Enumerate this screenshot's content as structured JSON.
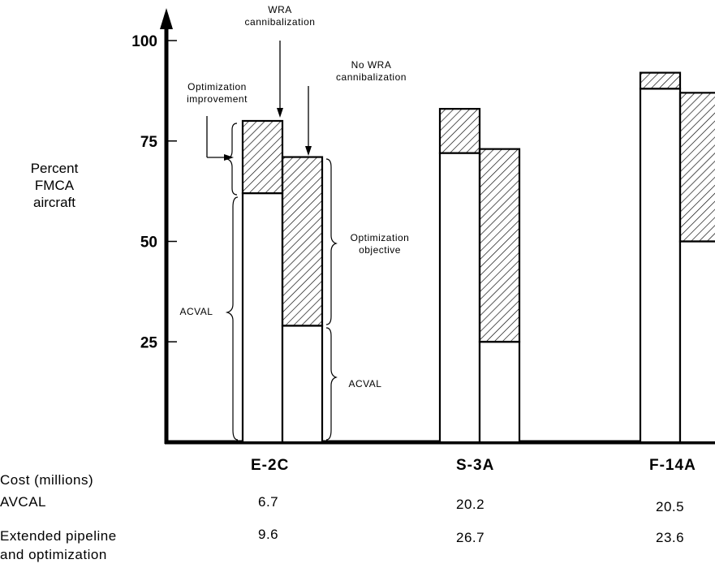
{
  "chart_data": {
    "type": "bar",
    "title": "",
    "ylabel_lines": [
      "Percent",
      "FMCA",
      "aircraft"
    ],
    "yticks": [
      25,
      50,
      75,
      100
    ],
    "ylim": [
      0,
      100
    ],
    "grid": false,
    "categories": [
      "E-2C",
      "S-3A",
      "F-14A"
    ],
    "series": [
      {
        "name": "WRA cannibalization",
        "acval": [
          62,
          72,
          88
        ],
        "optimized": [
          80,
          83,
          92
        ]
      },
      {
        "name": "No WRA cannibalization",
        "acval": [
          29,
          25,
          50
        ],
        "optimized": [
          71,
          73,
          87
        ]
      }
    ],
    "annotations": {
      "wra": [
        "WRA",
        "cannibalization"
      ],
      "no_wra": [
        "No WRA",
        "cannibalization"
      ],
      "opt_improvement": [
        "Optimization",
        "improvement"
      ],
      "opt_objective": [
        "Optimization",
        "objective"
      ],
      "acval_left": "ACVAL",
      "acval_right": "ACVAL"
    },
    "cost_table": {
      "header": "Cost  (millions)",
      "rows": [
        {
          "label": "AVCAL",
          "values": [
            "6.7",
            "20.2",
            "20.5"
          ]
        },
        {
          "label": "Extended pipeline",
          "label2": "and optimization",
          "values": [
            "9.6",
            "26.7",
            "23.6"
          ]
        }
      ]
    }
  }
}
